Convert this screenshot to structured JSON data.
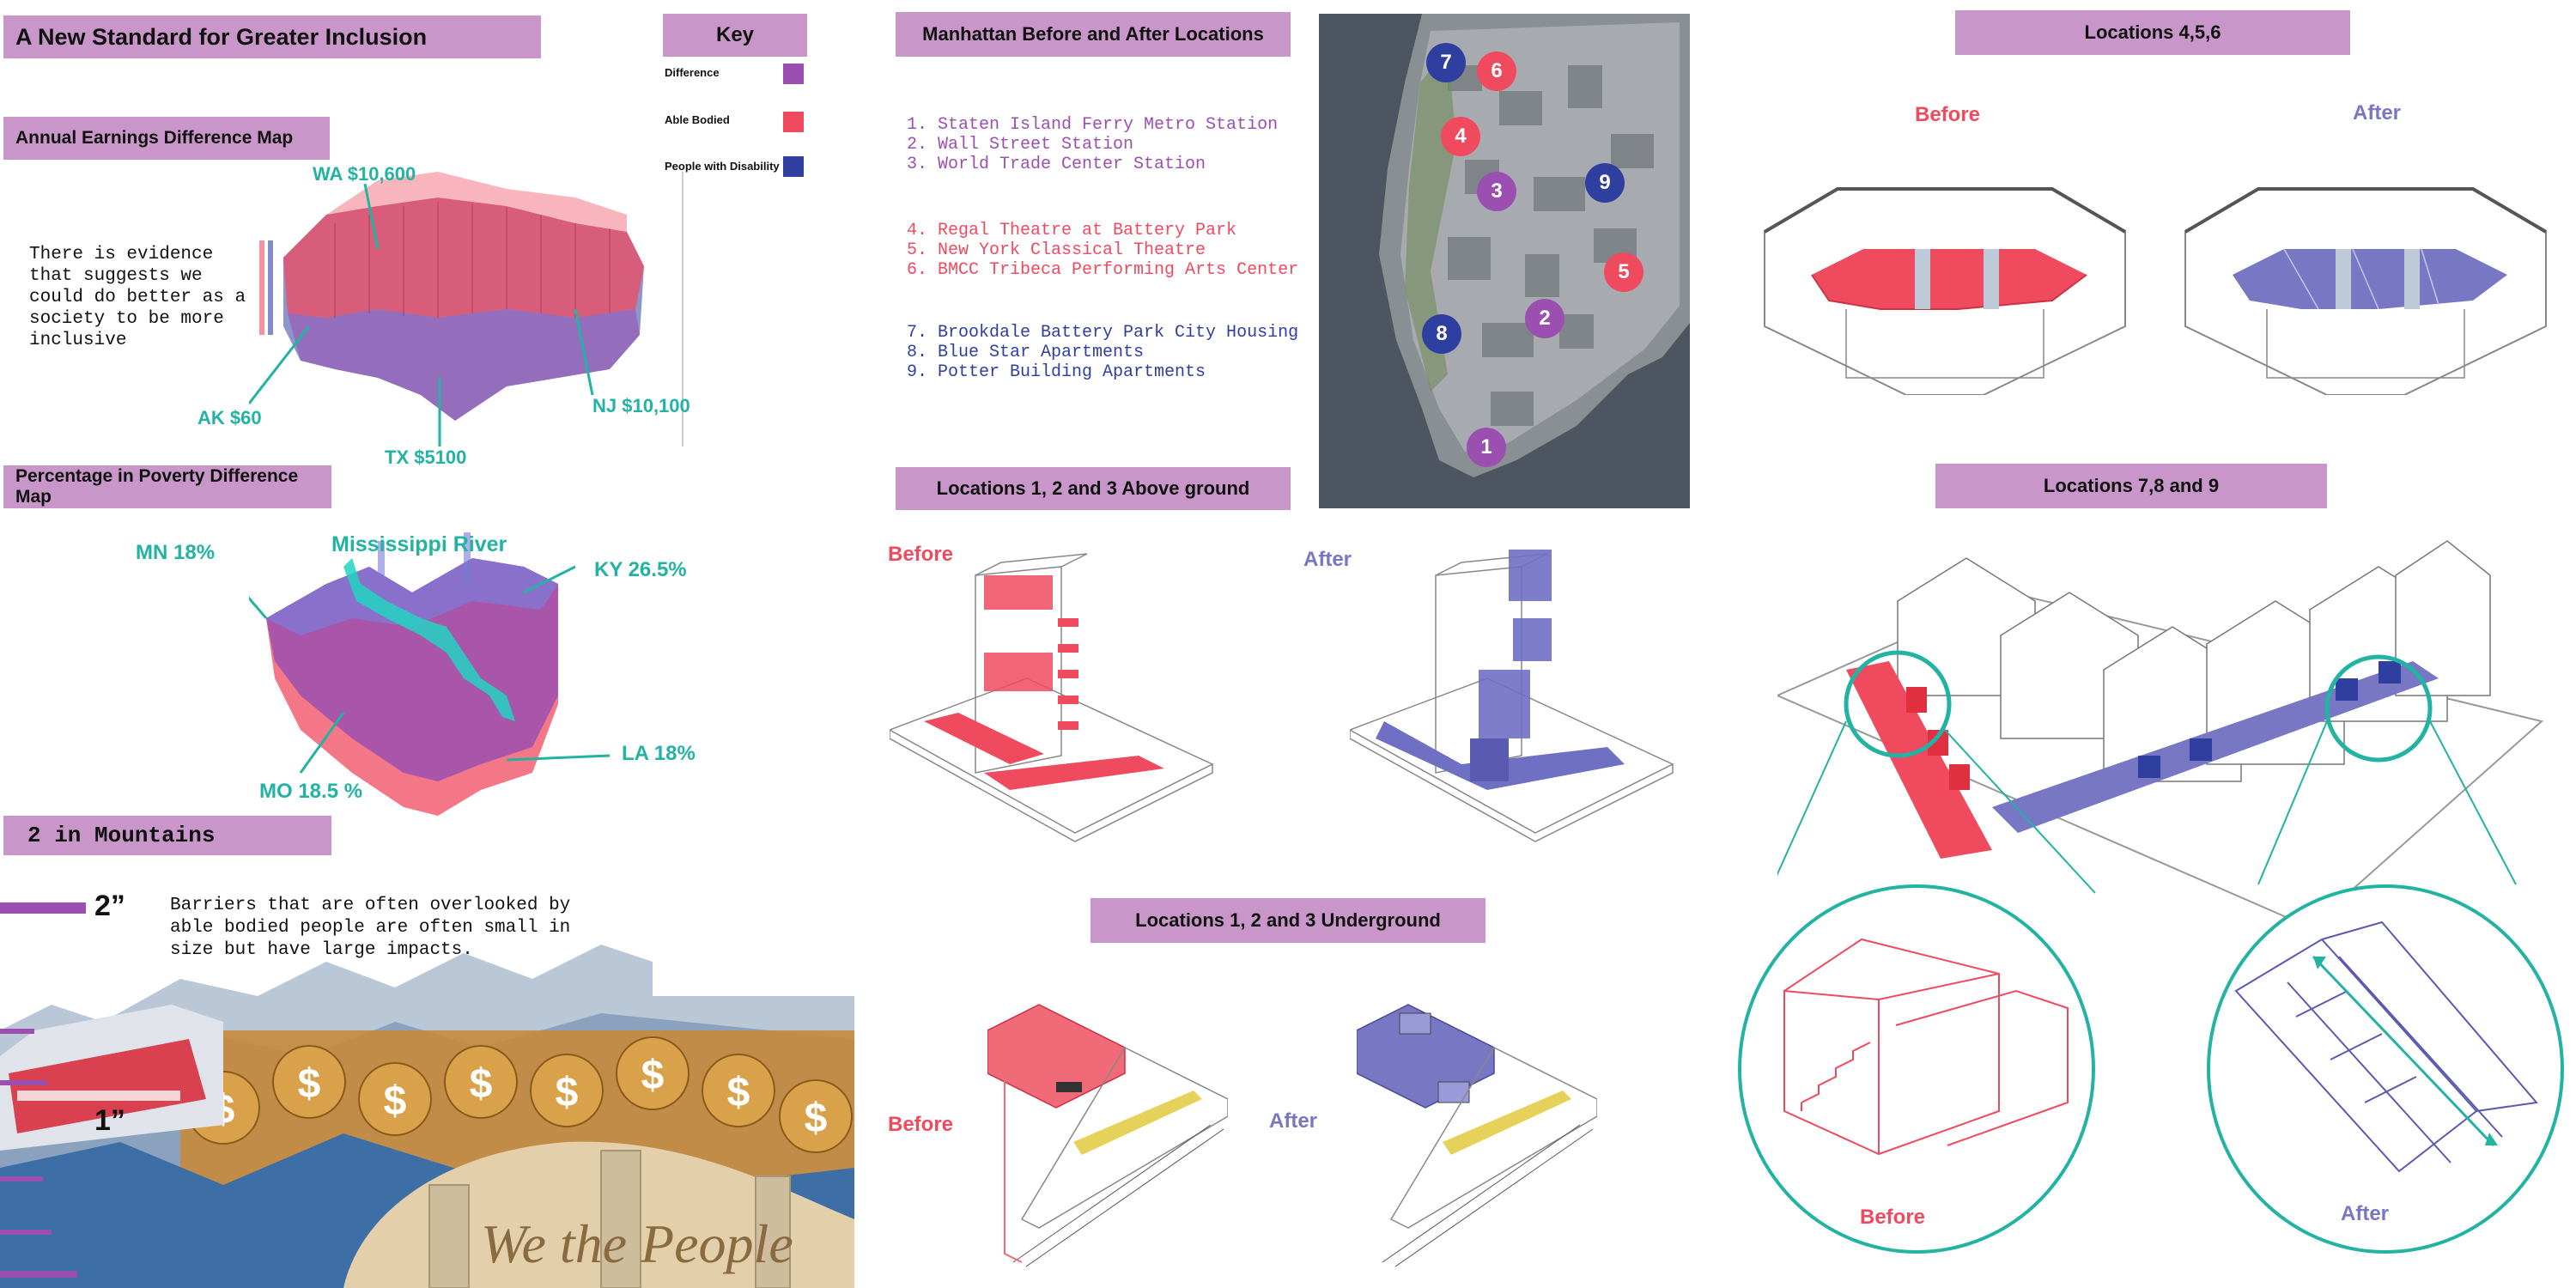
{
  "colors": {
    "header": "#c896c8",
    "difference": "#9b4fb0",
    "able_bodied": "#f04a5f",
    "disability": "#2f3fa0",
    "teal": "#22b3a3",
    "after": "#7777c4"
  },
  "title": "A New Standard for Greater Inclusion",
  "key": {
    "title": "Key",
    "items": [
      {
        "label": "Difference",
        "color": "#9b4fb0"
      },
      {
        "label": "Able Bodied",
        "color": "#f04a5f"
      },
      {
        "label": "People with Disability",
        "color": "#2f3fa0"
      }
    ]
  },
  "earnings": {
    "title": "Annual Earnings Difference Map",
    "text": "There is evidence that suggests we could do better as a society to be more inclusive",
    "callouts": [
      "WA $10,600",
      "AK $60",
      "TX $5100",
      "NJ $10,100"
    ]
  },
  "poverty": {
    "title": "Percentage in Poverty Difference Map",
    "callouts": [
      "MN 18%",
      "Mississippi River",
      "KY 26.5%",
      "LA 18%",
      "MO 18.5 %"
    ]
  },
  "mountains": {
    "title": "2 in Mountains",
    "two_inch": "2”",
    "one_inch": "1”",
    "text": "Barriers that are often overlooked by able bodied people are  often small in size but have large impacts."
  },
  "manhattan": {
    "title": "Manhattan Before and After Locations",
    "group1": [
      "1. Staten Island Ferry Metro Station",
      "2. Wall Street Station",
      "3. World Trade Center Station"
    ],
    "group2": [
      "4. Regal Theatre at Battery Park",
      "5. New York Classical Theatre",
      "6. BMCC Tribeca Performing Arts Center"
    ],
    "group3": [
      "7. Brookdale Battery Park City Housing",
      "8. Blue Star Apartments",
      "9. Potter Building Apartments"
    ],
    "pins": [
      "1",
      "2",
      "3",
      "4",
      "5",
      "6",
      "7",
      "8",
      "9"
    ]
  },
  "loc123_above": {
    "title": "Locations 1, 2 and 3 Above ground",
    "before": "Before",
    "after": "After"
  },
  "loc123_under": {
    "title": "Locations 1, 2 and 3 Underground",
    "before": "Before",
    "after": "After"
  },
  "loc456": {
    "title": "Locations  4,5,6",
    "before": "Before",
    "after": "After"
  },
  "loc789": {
    "title": "Locations 7,8 and 9",
    "before": "Before",
    "after": "After"
  }
}
